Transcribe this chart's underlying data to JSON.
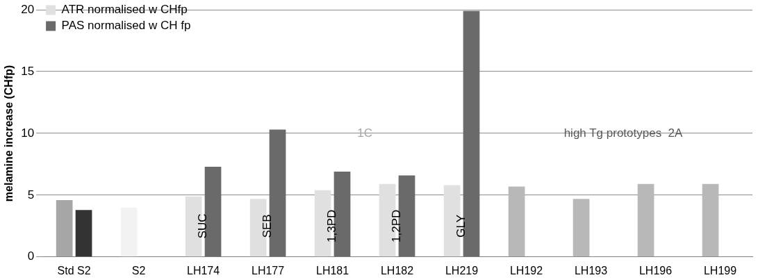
{
  "chart_data": {
    "type": "bar",
    "ylabel": "melamine increase (CHfp)",
    "categories": [
      "Std S2",
      "S2",
      "LH174",
      "LH177",
      "LH181",
      "LH182",
      "LH219",
      "LH192",
      "LH193",
      "LH196",
      "LH199"
    ],
    "series": [
      {
        "name": "ATR normalised w CHfp",
        "color": "#e0e0e0",
        "colors": [
          "#a6a6a6",
          "#f2f2f2",
          "#e0e0e0",
          "#e0e0e0",
          "#e0e0e0",
          "#e0e0e0",
          "#e0e0e0",
          "#b8b8b8",
          "#b8b8b8",
          "#b8b8b8",
          "#b8b8b8"
        ],
        "values": [
          4.6,
          4.0,
          4.9,
          4.7,
          5.4,
          5.9,
          5.8,
          5.7,
          4.7,
          5.9,
          5.9
        ]
      },
      {
        "name": "PAS normalised w CH fp",
        "color": "#6a6a6a",
        "colors": [
          "#333333",
          "#6a6a6a",
          "#6a6a6a",
          "#6a6a6a",
          "#6a6a6a",
          "#6a6a6a",
          "#6a6a6a",
          "#6a6a6a",
          "#6a6a6a",
          "#6a6a6a",
          "#6a6a6a"
        ],
        "values": [
          3.8,
          null,
          7.3,
          10.3,
          6.9,
          6.6,
          19.9,
          null,
          null,
          null,
          null
        ]
      }
    ],
    "ylim": [
      0,
      20
    ],
    "yticks": [
      0,
      5,
      10,
      15,
      20
    ],
    "grid": "y",
    "legend": "top left",
    "annotations": [
      {
        "text": "SUC",
        "x": "LH174",
        "y": 2.5
      },
      {
        "text": "SEB",
        "x": "LH177",
        "y": 2.5
      },
      {
        "text": "1,3PD",
        "x": "LH181",
        "y": 2.5
      },
      {
        "text": "1,2PD",
        "x": "LH182",
        "y": 2.5
      },
      {
        "text": "GLY",
        "x": "LH219",
        "y": 2.5
      },
      "1C",
      "high Tg prototypes  2A"
    ]
  }
}
